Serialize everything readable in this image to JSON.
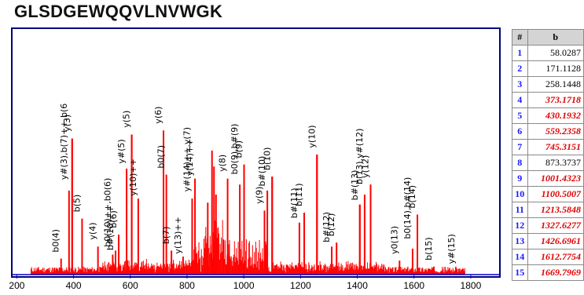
{
  "title": "GLSDGEWQQVLNVWGK",
  "colors": {
    "frame": "#000080",
    "peak": "#ff0000",
    "label_line": "#00c000",
    "axis": "#0000cc"
  },
  "chart_data": {
    "type": "bar",
    "title": "",
    "xlabel": "",
    "ylabel": "",
    "xlim": [
      185,
      1900
    ],
    "ylim": [
      0,
      100
    ],
    "xticks": [
      200,
      400,
      600,
      800,
      1000,
      1200,
      1400,
      1600,
      1800
    ],
    "annotated_peaks": [
      {
        "label": "b0(4)",
        "mz": 356,
        "intensity": 8
      },
      {
        "label": "y#(3),b(7)++,b(6",
        "mz": 384,
        "intensity": 42
      },
      {
        "label": "y(3)",
        "mz": 395,
        "intensity": 68
      },
      {
        "label": "b(5)",
        "mz": 430,
        "intensity": 28
      },
      {
        "label": "y(4)",
        "mz": 486,
        "intensity": 14
      },
      {
        "label": "b0(10)++,b0(6)",
        "mz": 538,
        "intensity": 10
      },
      {
        "label": "b#(10)++",
        "mz": 548,
        "intensity": 12
      },
      {
        "label": "b(6)",
        "mz": 559,
        "intensity": 20
      },
      {
        "label": "y#(5)",
        "mz": 587,
        "intensity": 53
      },
      {
        "label": "y(5)",
        "mz": 605,
        "intensity": 70
      },
      {
        "label": "y(10)++",
        "mz": 628,
        "intensity": 38
      },
      {
        "label": "y(6)",
        "mz": 717,
        "intensity": 72
      },
      {
        "label": "b0(7)",
        "mz": 727,
        "intensity": 50
      },
      {
        "label": "b(7)",
        "mz": 745,
        "intensity": 12
      },
      {
        "label": "y(13)++",
        "mz": 786,
        "intensity": 9
      },
      {
        "label": "y#(14)++,y(7)",
        "mz": 818,
        "intensity": 38
      },
      {
        "label": "y(14)++",
        "mz": 828,
        "intensity": 48
      },
      {
        "label": "y(8)",
        "mz": 943,
        "intensity": 48
      },
      {
        "label": "b0(9),b#(9)",
        "mz": 986,
        "intensity": 45
      },
      {
        "label": "b(9)",
        "mz": 1001,
        "intensity": 55
      },
      {
        "label": "y(9)",
        "mz": 1073,
        "intensity": 32
      },
      {
        "label": "b#(10)",
        "mz": 1083,
        "intensity": 42
      },
      {
        "label": "b(10)",
        "mz": 1100,
        "intensity": 49
      },
      {
        "label": "b#(11)",
        "mz": 1196,
        "intensity": 26
      },
      {
        "label": "b(11)",
        "mz": 1213,
        "intensity": 31
      },
      {
        "label": "b#(12)",
        "mz": 1310,
        "intensity": 14
      },
      {
        "label": "b(12)",
        "mz": 1327,
        "intensity": 16
      },
      {
        "label": "y(10)",
        "mz": 1258,
        "intensity": 60
      },
      {
        "label": "b#(13)",
        "mz": 1409,
        "intensity": 35
      },
      {
        "label": "b(13),y#(12)",
        "mz": 1426,
        "intensity": 40
      },
      {
        "label": "y(12)",
        "mz": 1447,
        "intensity": 45
      },
      {
        "label": "y0(13)",
        "mz": 1549,
        "intensity": 7
      },
      {
        "label": "b0(14),b#(14)",
        "mz": 1595,
        "intensity": 13
      },
      {
        "label": "b(14)",
        "mz": 1612,
        "intensity": 30
      },
      {
        "label": "b(15)",
        "mz": 1670,
        "intensity": 4
      },
      {
        "label": "y#(15)",
        "mz": 1750,
        "intensity": 3
      }
    ],
    "major_peaks": [
      {
        "mz": 395,
        "intensity": 68
      },
      {
        "mz": 605,
        "intensity": 70
      },
      {
        "mz": 717,
        "intensity": 72
      },
      {
        "mz": 888,
        "intensity": 62
      },
      {
        "mz": 895,
        "intensity": 54
      },
      {
        "mz": 873,
        "intensity": 36
      },
      {
        "mz": 902,
        "intensity": 40
      },
      {
        "mz": 1258,
        "intensity": 60
      },
      {
        "mz": 1100,
        "intensity": 49
      },
      {
        "mz": 1001,
        "intensity": 55
      },
      {
        "mz": 1409,
        "intensity": 35
      },
      {
        "mz": 1447,
        "intensity": 45
      }
    ]
  },
  "ion_table": {
    "headers": [
      "#",
      "b"
    ],
    "rows": [
      {
        "index": "1",
        "value": "58.0287",
        "highlight": false
      },
      {
        "index": "2",
        "value": "171.1128",
        "highlight": false
      },
      {
        "index": "3",
        "value": "258.1448",
        "highlight": false
      },
      {
        "index": "4",
        "value": "373.1718",
        "highlight": true
      },
      {
        "index": "5",
        "value": "430.1932",
        "highlight": true
      },
      {
        "index": "6",
        "value": "559.2358",
        "highlight": true
      },
      {
        "index": "7",
        "value": "745.3151",
        "highlight": true
      },
      {
        "index": "8",
        "value": "873.3737",
        "highlight": false
      },
      {
        "index": "9",
        "value": "1001.4323",
        "highlight": true
      },
      {
        "index": "10",
        "value": "1100.5007",
        "highlight": true
      },
      {
        "index": "11",
        "value": "1213.5848",
        "highlight": true
      },
      {
        "index": "12",
        "value": "1327.6277",
        "highlight": true
      },
      {
        "index": "13",
        "value": "1426.6961",
        "highlight": true
      },
      {
        "index": "14",
        "value": "1612.7754",
        "highlight": true
      },
      {
        "index": "15",
        "value": "1669.7969",
        "highlight": true
      }
    ]
  }
}
